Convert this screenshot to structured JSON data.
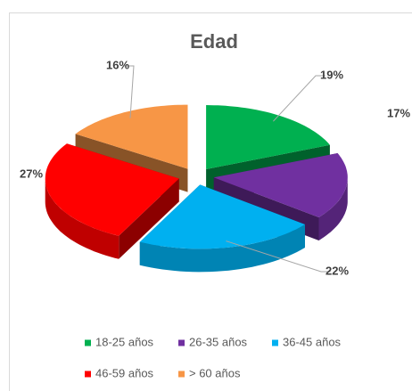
{
  "chart_data": {
    "type": "pie3d",
    "title": "Edad",
    "categories": [
      "18-25 años",
      "26-35 años",
      "36-45 años",
      "46-59 años",
      "> 60 años"
    ],
    "values": [
      19,
      17,
      22,
      27,
      16
    ],
    "value_labels": [
      "19%",
      "17%",
      "22%",
      "27%",
      "16%"
    ],
    "colors": [
      "#00b050",
      "#7030a0",
      "#00b0f0",
      "#ff0000",
      "#f79646"
    ],
    "legend": "bottom"
  }
}
